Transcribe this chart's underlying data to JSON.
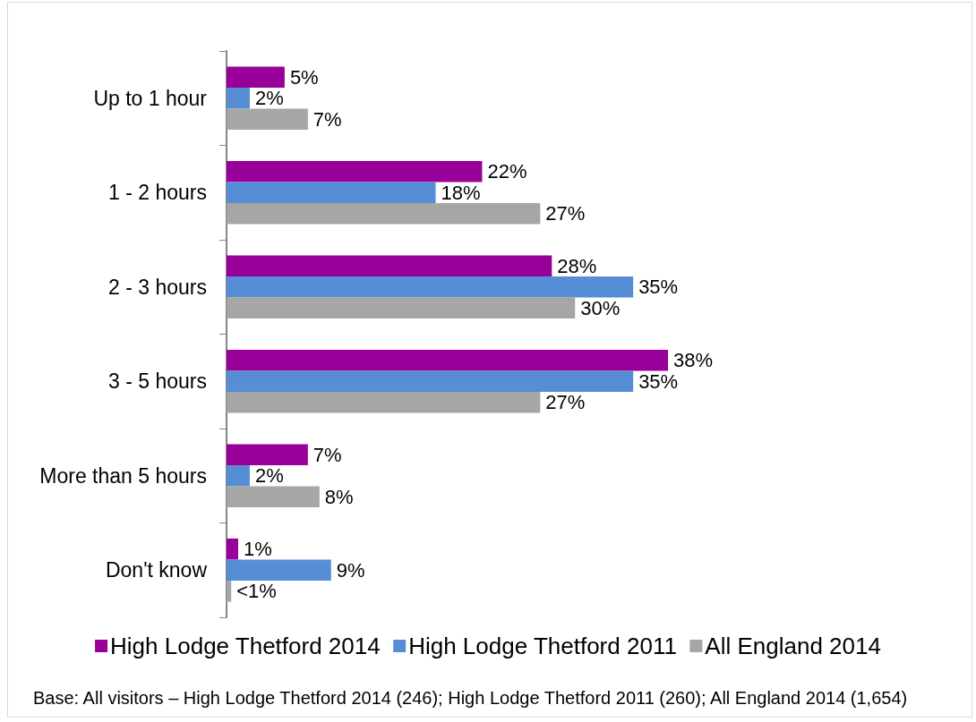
{
  "chart_data": {
    "type": "bar",
    "orientation": "horizontal",
    "tick_labels": "y",
    "legend": "bottom",
    "categories": [
      "Up to 1 hour",
      "1 - 2 hours",
      "2 - 3 hours",
      "3 - 5 hours",
      "More than 5 hours",
      "Don't know"
    ],
    "series": [
      {
        "name": "High Lodge Thetford 2014",
        "color": "#990099",
        "values": [
          5,
          22,
          28,
          38,
          7,
          1
        ],
        "value_labels": [
          "5%",
          "22%",
          "28%",
          "38%",
          "7%",
          "1%"
        ]
      },
      {
        "name": "High Lodge Thetford 2011",
        "color": "#558ed5",
        "values": [
          2,
          18,
          35,
          35,
          2,
          9
        ],
        "value_labels": [
          "2%",
          "18%",
          "35%",
          "35%",
          "2%",
          "9%"
        ]
      },
      {
        "name": "All England 2014",
        "color": "#a6a6a6",
        "values": [
          7,
          27,
          30,
          27,
          8,
          0.4
        ],
        "value_labels": [
          "7%",
          "27%",
          "30%",
          "27%",
          "8%",
          "<1%"
        ]
      }
    ],
    "annotations": [
      "Base: All visitors – High Lodge Thetford 2014 (246); High Lodge Thetford 2011 (260); All England 2014 (1,654)"
    ]
  }
}
